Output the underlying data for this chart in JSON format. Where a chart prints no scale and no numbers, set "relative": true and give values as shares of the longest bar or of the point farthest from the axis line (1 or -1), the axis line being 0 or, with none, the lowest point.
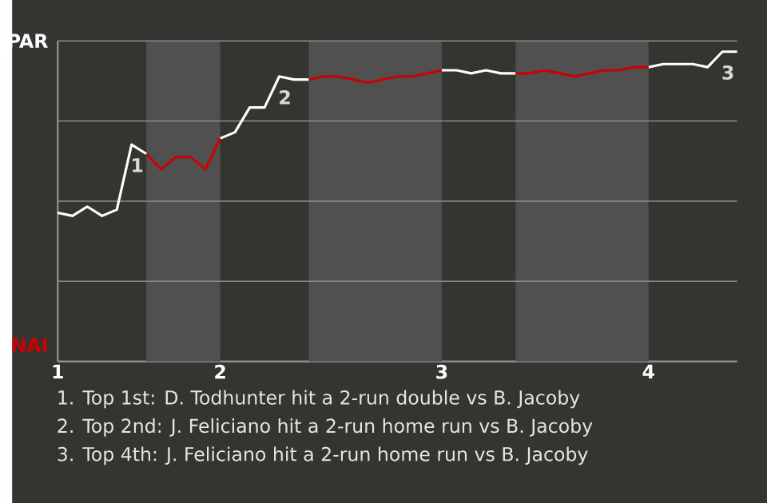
{
  "chart_data": {
    "type": "line",
    "relative": true,
    "categories": [
      "1",
      null,
      null,
      null,
      null,
      null,
      null,
      null,
      null,
      null,
      null,
      "2",
      null,
      null,
      null,
      null,
      null,
      null,
      null,
      null,
      null,
      null,
      null,
      null,
      null,
      null,
      "3",
      null,
      null,
      null,
      null,
      null,
      null,
      null,
      null,
      null,
      null,
      null,
      null,
      null,
      "4",
      null,
      null,
      null,
      null,
      null,
      null
    ],
    "grid": "y",
    "series": [
      {
        "color": "#ffffff",
        "values": [
          0.48,
          0.47,
          0.5,
          0.47,
          0.49,
          0.7,
          0.67,
          null,
          null,
          null,
          null,
          0.72,
          0.74,
          0.82,
          0.82,
          0.92,
          0.91,
          0.91,
          null,
          null,
          null,
          null,
          null,
          null,
          null,
          null,
          0.94,
          0.94,
          0.93,
          0.94,
          0.93,
          0.93,
          null,
          null,
          null,
          null,
          null,
          null,
          null,
          null,
          0.95,
          0.96,
          0.96,
          0.96,
          0.95,
          1,
          1
        ]
      },
      {
        "color": "#cc0000",
        "values": [
          null,
          null,
          null,
          null,
          null,
          null,
          0.67,
          0.62,
          0.66,
          0.66,
          0.62,
          0.72,
          null,
          null,
          null,
          null,
          null,
          0.91,
          0.92,
          0.92,
          0.91,
          0.9,
          0.91,
          0.92,
          0.92,
          0.93,
          0.94,
          null,
          null,
          null,
          null,
          0.93,
          0.93,
          0.94,
          0.93,
          0.92,
          0.93,
          0.94,
          0.94,
          0.95,
          0.95,
          null,
          null,
          null,
          null,
          null,
          null
        ]
      }
    ],
    "annotations": [
      "PAR",
      "NAI",
      {
        "text": "1",
        "y": 0.7
      },
      {
        "text": "2",
        "y": 0.92
      },
      {
        "text": "3",
        "y": 1
      },
      "1. Top 1st: D. Todhunter hit a 2-run double vs B. Jacoby",
      "2. Top 2nd: J. Feliciano hit a 2-run home run vs B. Jacoby",
      "3. Top 4th: J. Feliciano hit a 2-run home run vs B. Jacoby"
    ]
  }
}
